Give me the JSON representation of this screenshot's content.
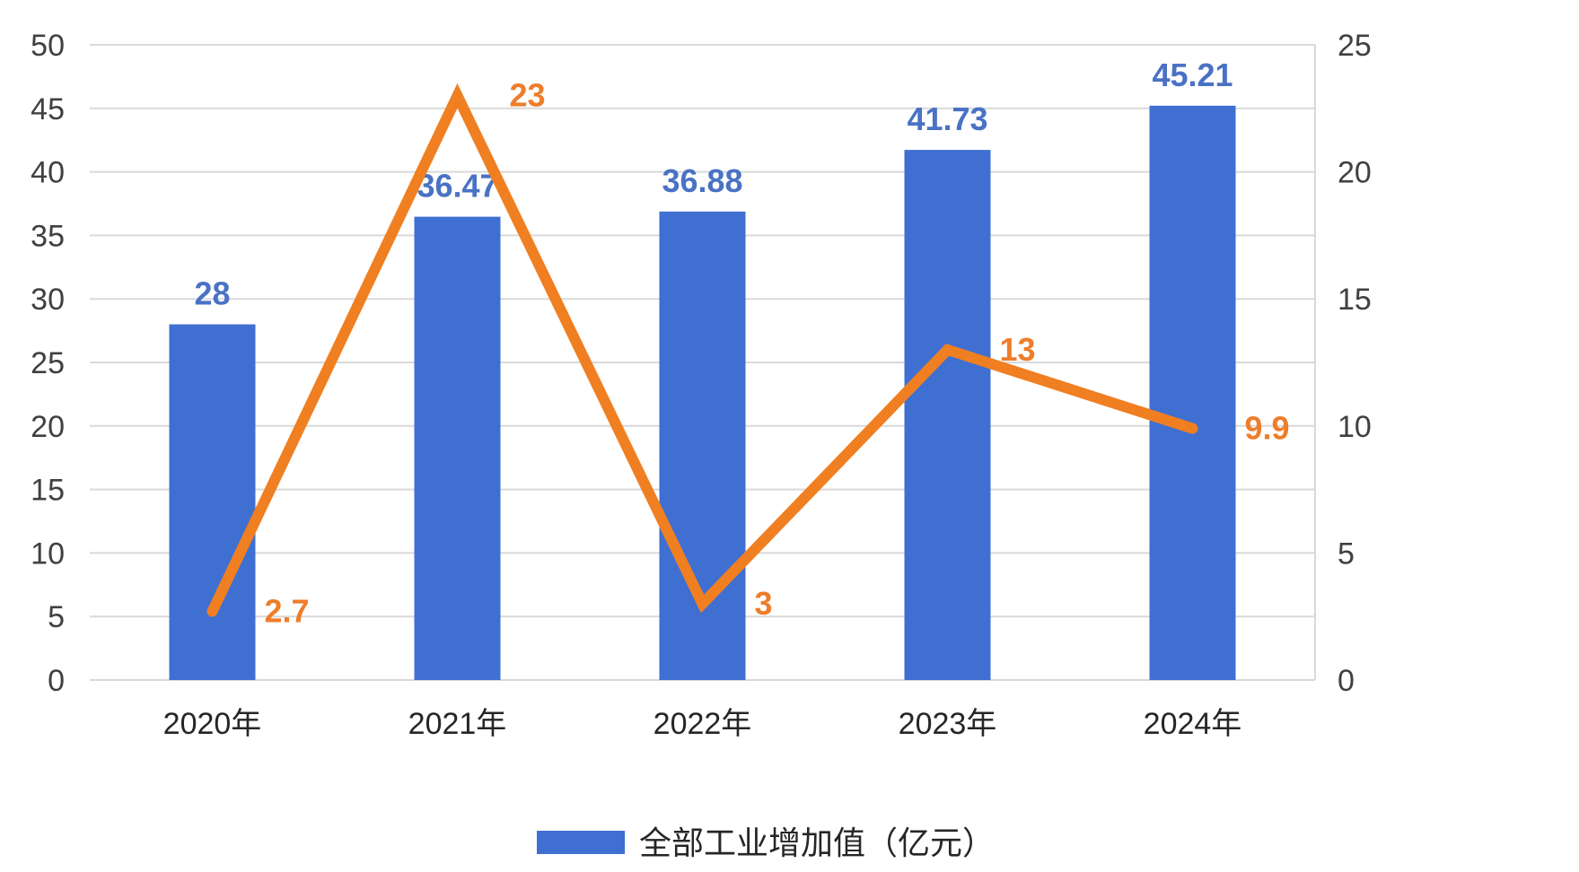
{
  "chart_data": {
    "type": "bar",
    "categories": [
      "2020年",
      "2021年",
      "2022年",
      "2023年",
      "2024年"
    ],
    "series": [
      {
        "name": "全部工业增加值（亿元）",
        "type": "bar",
        "axis": "left",
        "values": [
          28,
          36.47,
          36.88,
          41.73,
          45.21
        ],
        "labels": [
          "28",
          "36.47",
          "36.88",
          "41.73",
          "45.21"
        ]
      },
      {
        "type": "line",
        "axis": "right",
        "values": [
          2.7,
          23,
          3,
          13,
          9.9
        ],
        "labels": [
          "2.7",
          "23",
          "3",
          "13",
          "9.9"
        ]
      }
    ],
    "y_left": {
      "min": 0,
      "max": 50,
      "ticks": [
        "0",
        "5",
        "10",
        "15",
        "20",
        "25",
        "30",
        "35",
        "40",
        "45",
        "50"
      ]
    },
    "y_right": {
      "min": 0,
      "max": 25,
      "ticks": [
        "0",
        "5",
        "10",
        "15",
        "20",
        "25"
      ]
    },
    "grid": true,
    "legend_position": "bottom",
    "colors": {
      "bar": "#3f6fd1",
      "bar_label": "#4a72c4",
      "line": "#f07f22",
      "line_label": "#ee7d2a",
      "grid": "#d9d9d9"
    }
  }
}
